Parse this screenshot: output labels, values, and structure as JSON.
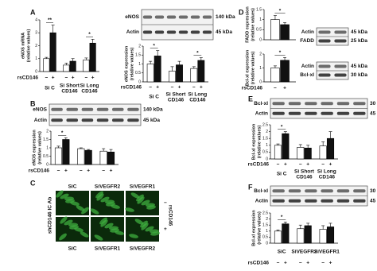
{
  "panel_labels": [
    "A",
    "B",
    "C",
    "D",
    "E",
    "F"
  ],
  "blots": [
    {
      "bands": [
        {
          "name": "eNOS",
          "size": "140 kDa"
        },
        {
          "name": "Actin",
          "size": "45 kDa"
        }
      ]
    },
    {
      "bands": [
        {
          "name": "eNOS",
          "size": "140 kDa"
        },
        {
          "name": "Actin",
          "size": "45 kDa"
        }
      ]
    },
    {
      "bands": [
        {
          "name": "Actin",
          "size": "45 kDa"
        },
        {
          "name": "FADD",
          "size": "25 kDa"
        }
      ]
    },
    {
      "bands": [
        {
          "name": "Actin",
          "size": "45 kDa"
        },
        {
          "name": "Bcl-xl",
          "size": "30 kDa"
        }
      ]
    },
    {
      "bands": [
        {
          "name": "Bcl-xl",
          "size": "30 kDa"
        },
        {
          "name": "Actin",
          "size": "45 kDa"
        }
      ]
    },
    {
      "bands": [
        {
          "name": "Bcl-xl",
          "size": "30 kDa"
        },
        {
          "name": "Actin",
          "size": "45 kDa"
        }
      ]
    }
  ],
  "micrograph": {
    "columns_top": [
      "SiC",
      "SiVEGFR2",
      "SiVEGFR1"
    ],
    "columns_bottom": [
      "SiC",
      "SiVEGFR1",
      "SiVEGFR2"
    ],
    "row_axis_label": "shCD146 IC Ab",
    "condition_label": "rsCD146",
    "row_labels": [
      "−",
      "+"
    ]
  },
  "chart_data": [
    {
      "type": "bar",
      "ylabel": "eNOS mRNA (relative values)",
      "ylim": [
        0,
        4
      ],
      "yticks": [
        0,
        1,
        2,
        3,
        4
      ],
      "categories": [
        "Si C",
        "Si Short CD146",
        "Si Long CD146"
      ],
      "series": [
        {
          "color": "#ffffff",
          "values": [
            1,
            0.5,
            0.9
          ],
          "errors": [
            0.1,
            0.15,
            0.15
          ]
        },
        {
          "color": "#111111",
          "values": [
            3.0,
            0.8,
            2.2
          ],
          "errors": [
            0.6,
            0.2,
            0.3
          ]
        }
      ],
      "significance": [
        "**",
        null,
        "*"
      ],
      "x_row_label": "rsCD146",
      "x_sublabels": [
        "−",
        "+"
      ]
    },
    {
      "type": "bar",
      "ylabel": "eNOS expression (relative values)",
      "ylim": [
        0,
        2
      ],
      "yticks": [
        0,
        0.5,
        1,
        1.5,
        2
      ],
      "categories": [
        "Si C",
        "Si Short CD146",
        "Si Long CD146"
      ],
      "series": [
        {
          "color": "#ffffff",
          "values": [
            1,
            0.6,
            0.75
          ],
          "errors": [
            0.15,
            0.25,
            0.1
          ]
        },
        {
          "color": "#111111",
          "values": [
            1.45,
            0.95,
            1.2
          ],
          "errors": [
            0.3,
            0.2,
            0.15
          ]
        }
      ],
      "significance": [
        "*",
        null,
        "*"
      ],
      "x_row_label": "rsCD146",
      "x_sublabels": [
        "−",
        "+"
      ]
    },
    {
      "type": "bar",
      "ylabel": "eNOS expression (relative values)",
      "ylim": [
        0,
        2
      ],
      "yticks": [
        0,
        0.5,
        1,
        1.5,
        2
      ],
      "categories": [
        null,
        null,
        null
      ],
      "series": [
        {
          "color": "#ffffff",
          "values": [
            1,
            0.95,
            0.8
          ],
          "errors": [
            0.1,
            0.05,
            0.15
          ]
        },
        {
          "color": "#111111",
          "values": [
            1.5,
            0.85,
            0.75
          ],
          "errors": [
            0.1,
            0.05,
            0.15
          ]
        }
      ],
      "significance": [
        "*",
        null,
        null
      ],
      "x_row_label": "rsCD146",
      "x_sublabels": [
        "−",
        "+"
      ]
    },
    {
      "type": "bar",
      "ylabel": "FADD expression (relative values)",
      "ylim": [
        0,
        1.5
      ],
      "yticks": [
        0,
        0.5,
        1,
        1.5
      ],
      "categories": [
        null
      ],
      "series": [
        {
          "color": "#ffffff",
          "values": [
            1
          ],
          "errors": [
            0.2
          ]
        },
        {
          "color": "#111111",
          "values": [
            0.75
          ],
          "errors": [
            0.1
          ]
        }
      ],
      "significance": [
        "*"
      ]
    },
    {
      "type": "bar",
      "ylabel": "Bcl-xl expression (relative values)",
      "ylim": [
        0,
        2
      ],
      "yticks": [
        0,
        1,
        2
      ],
      "categories": [
        null
      ],
      "series": [
        {
          "color": "#ffffff",
          "values": [
            1
          ],
          "errors": [
            0.15
          ]
        },
        {
          "color": "#111111",
          "values": [
            1.55
          ],
          "errors": [
            0.2
          ]
        }
      ],
      "significance": [
        "*"
      ],
      "x_row_label": "rsCD146",
      "x_sublabels": [
        "−",
        "+"
      ]
    },
    {
      "type": "bar",
      "ylabel": "Bcl-xl expression (relative values)",
      "ylim": [
        0,
        2.5
      ],
      "yticks": [
        0,
        0.5,
        1,
        1.5,
        2,
        2.5
      ],
      "categories": [
        "Si C",
        "Si Short CD146",
        "Si Long CD146"
      ],
      "series": [
        {
          "color": "#ffffff",
          "values": [
            1,
            0.85,
            0.95
          ],
          "errors": [
            0.1,
            0.2,
            0.3
          ]
        },
        {
          "color": "#111111",
          "values": [
            1.85,
            0.8,
            1.5
          ],
          "errors": [
            0.15,
            0.2,
            0.5
          ]
        }
      ],
      "significance": [
        "*",
        null,
        null
      ],
      "x_row_label": "rsCD146",
      "x_sublabels": [
        "−",
        "+"
      ]
    },
    {
      "type": "bar",
      "ylabel": "Bcl-xl expression (relative values)",
      "ylim": [
        0,
        2.5
      ],
      "yticks": [
        0,
        0.5,
        1,
        1.5,
        2,
        2.5
      ],
      "categories": [
        "SiC",
        "SiVEGFR2",
        "SiVEGFR1"
      ],
      "series": [
        {
          "color": "#ffffff",
          "values": [
            1,
            1.2,
            1.15
          ],
          "errors": [
            0.1,
            0.3,
            0.3
          ]
        },
        {
          "color": "#111111",
          "values": [
            1.6,
            1.45,
            1.35
          ],
          "errors": [
            0.15,
            0.2,
            0.3
          ]
        }
      ],
      "significance": [
        "*",
        null,
        null
      ],
      "x_row_label": "rsCD146",
      "x_sublabels": [
        "−",
        "+"
      ]
    }
  ]
}
